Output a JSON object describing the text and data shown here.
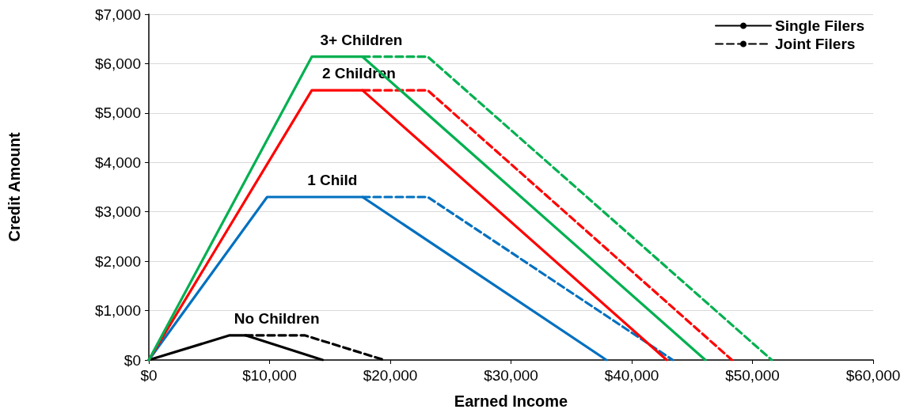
{
  "chart_data": {
    "type": "line",
    "xlabel": "Earned Income",
    "ylabel": "Credit Amount",
    "xlim": [
      0,
      60000
    ],
    "ylim": [
      0,
      7000
    ],
    "xticks": [
      {
        "value": 0,
        "label": "$0"
      },
      {
        "value": 10000,
        "label": "$10,000"
      },
      {
        "value": 20000,
        "label": "$20,000"
      },
      {
        "value": 30000,
        "label": "$30,000"
      },
      {
        "value": 40000,
        "label": "$40,000"
      },
      {
        "value": 50000,
        "label": "$50,000"
      },
      {
        "value": 60000,
        "label": "$60,000"
      }
    ],
    "yticks": [
      {
        "value": 0,
        "label": "$0"
      },
      {
        "value": 1000,
        "label": "$1,000"
      },
      {
        "value": 2000,
        "label": "$2,000"
      },
      {
        "value": 3000,
        "label": "$3,000"
      },
      {
        "value": 4000,
        "label": "$4,000"
      },
      {
        "value": 5000,
        "label": "$5,000"
      },
      {
        "value": 6000,
        "label": "$6,000"
      },
      {
        "value": 7000,
        "label": "$7,000"
      }
    ],
    "grid": "y",
    "legend": "top right",
    "marker": "none",
    "series": [
      {
        "name": "Single Filers",
        "color": "#000000",
        "line_style": "solid",
        "x": [
          0,
          6700,
          8000,
          14400
        ],
        "values": [
          0,
          500,
          500,
          0
        ]
      },
      {
        "name": "Joint Filers",
        "color": "#000000",
        "line_style": "dashed",
        "x": [
          8000,
          12900,
          19500
        ],
        "values": [
          500,
          500,
          0
        ]
      },
      {
        "color": "#0070c0",
        "line_style": "solid",
        "x": [
          0,
          9800,
          17700,
          37900
        ],
        "values": [
          0,
          3300,
          3300,
          0
        ]
      },
      {
        "color": "#0070c0",
        "line_style": "dashed",
        "x": [
          17700,
          23100,
          43400
        ],
        "values": [
          3300,
          3300,
          0
        ]
      },
      {
        "color": "#ff0000",
        "line_style": "solid",
        "x": [
          0,
          13500,
          17700,
          42900
        ],
        "values": [
          0,
          5460,
          5460,
          0
        ]
      },
      {
        "color": "#ff0000",
        "line_style": "dashed",
        "x": [
          17700,
          23100,
          48300
        ],
        "values": [
          5460,
          5460,
          0
        ]
      },
      {
        "color": "#00b050",
        "line_style": "solid",
        "x": [
          0,
          13500,
          17700,
          46100
        ],
        "values": [
          0,
          6140,
          6140,
          0
        ]
      },
      {
        "color": "#00b050",
        "line_style": "dashed",
        "x": [
          17700,
          23100,
          51600
        ],
        "values": [
          6140,
          6140,
          0
        ]
      }
    ],
    "annotations": [
      {
        "text": "No Children",
        "x": 10600,
        "y": 500
      },
      {
        "text": "1 Child",
        "x": 15200,
        "y": 3300
      },
      {
        "text": "2 Children",
        "x": 17400,
        "y": 5460
      },
      {
        "text": "3+ Children",
        "x": 17600,
        "y": 6140
      }
    ]
  }
}
